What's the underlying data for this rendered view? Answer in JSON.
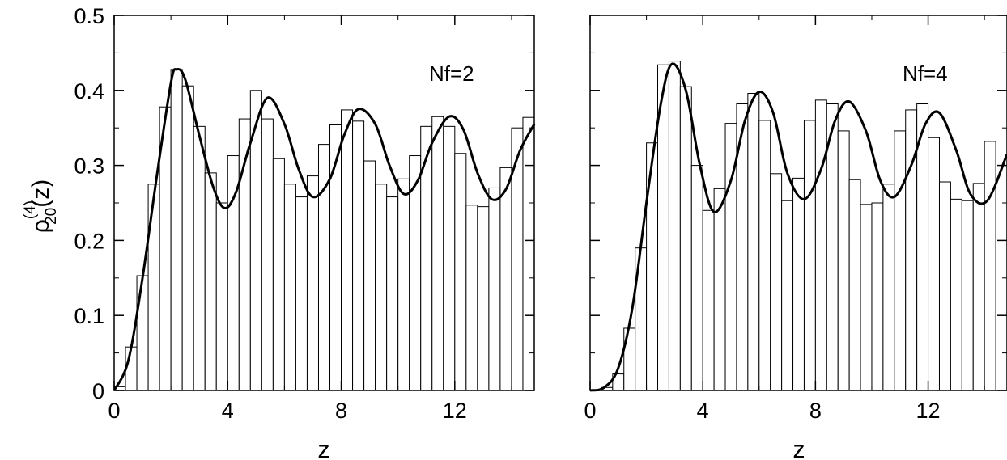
{
  "chart_data": [
    {
      "type": "bar",
      "annotation": "Nf=2",
      "xlabel": "z",
      "ylabel": {
        "symbol": "ρ",
        "superscript": "(4)",
        "subscript": "20",
        "suffix": "(z)"
      },
      "xlim": [
        0,
        14.8
      ],
      "ylim": [
        0,
        0.5
      ],
      "xticks": [
        0,
        4,
        8,
        12
      ],
      "yticks": [
        0,
        0.1,
        0.2,
        0.3,
        0.4,
        0.5
      ],
      "ytick_labels": [
        "0",
        "0.1",
        "0.2",
        "0.3",
        "0.4",
        "0.5"
      ],
      "grid": false,
      "histogram": {
        "bin_width": 0.4,
        "bin_start": 0,
        "values": [
          0.005,
          0.058,
          0.153,
          0.275,
          0.378,
          0.428,
          0.406,
          0.352,
          0.29,
          0.25,
          0.313,
          0.362,
          0.4,
          0.362,
          0.309,
          0.275,
          0.258,
          0.286,
          0.328,
          0.354,
          0.374,
          0.359,
          0.306,
          0.275,
          0.258,
          0.282,
          0.313,
          0.352,
          0.365,
          0.352,
          0.316,
          0.247,
          0.245,
          0.27,
          0.297,
          0.35,
          0.364
        ]
      },
      "curve": {
        "x": [
          0,
          0.5,
          1.0,
          1.5,
          2.0,
          2.2,
          2.5,
          3.0,
          3.5,
          3.9,
          4.3,
          4.8,
          5.4,
          6.0,
          6.5,
          7.0,
          7.6,
          8.1,
          8.6,
          9.2,
          9.7,
          10.2,
          10.7,
          11.2,
          11.8,
          12.3,
          12.8,
          13.3,
          13.8,
          14.3,
          14.8
        ],
        "y": [
          0.0,
          0.04,
          0.15,
          0.285,
          0.41,
          0.428,
          0.415,
          0.34,
          0.27,
          0.243,
          0.265,
          0.33,
          0.39,
          0.355,
          0.295,
          0.258,
          0.282,
          0.34,
          0.375,
          0.355,
          0.3,
          0.262,
          0.28,
          0.33,
          0.365,
          0.348,
          0.29,
          0.255,
          0.268,
          0.32,
          0.355
        ]
      }
    },
    {
      "type": "bar",
      "annotation": "Nf=4",
      "xlabel": "z",
      "xlim": [
        0,
        14.8
      ],
      "ylim": [
        0,
        0.5
      ],
      "xticks": [
        0,
        4,
        8,
        12
      ],
      "grid": false,
      "histogram": {
        "bin_width": 0.4,
        "bin_start": 0,
        "values": [
          0.001,
          0.004,
          0.022,
          0.083,
          0.19,
          0.33,
          0.434,
          0.439,
          0.405,
          0.3,
          0.24,
          0.269,
          0.356,
          0.382,
          0.396,
          0.36,
          0.289,
          0.253,
          0.283,
          0.36,
          0.387,
          0.382,
          0.346,
          0.281,
          0.248,
          0.25,
          0.275,
          0.346,
          0.374,
          0.382,
          0.337,
          0.278,
          0.255,
          0.253,
          0.276,
          0.332
        ]
      },
      "curve": {
        "x": [
          0,
          0.5,
          1.0,
          1.5,
          2.0,
          2.5,
          2.9,
          3.4,
          3.9,
          4.4,
          5.0,
          5.5,
          6.0,
          6.5,
          7.0,
          7.6,
          8.2,
          8.7,
          9.2,
          9.8,
          10.3,
          10.8,
          11.4,
          11.9,
          12.4,
          13.0,
          13.5,
          14.1,
          14.8
        ],
        "y": [
          0.0,
          0.004,
          0.03,
          0.11,
          0.25,
          0.38,
          0.435,
          0.4,
          0.3,
          0.238,
          0.28,
          0.36,
          0.398,
          0.37,
          0.29,
          0.255,
          0.295,
          0.36,
          0.385,
          0.345,
          0.28,
          0.258,
          0.3,
          0.355,
          0.37,
          0.32,
          0.262,
          0.253,
          0.315
        ]
      }
    }
  ]
}
